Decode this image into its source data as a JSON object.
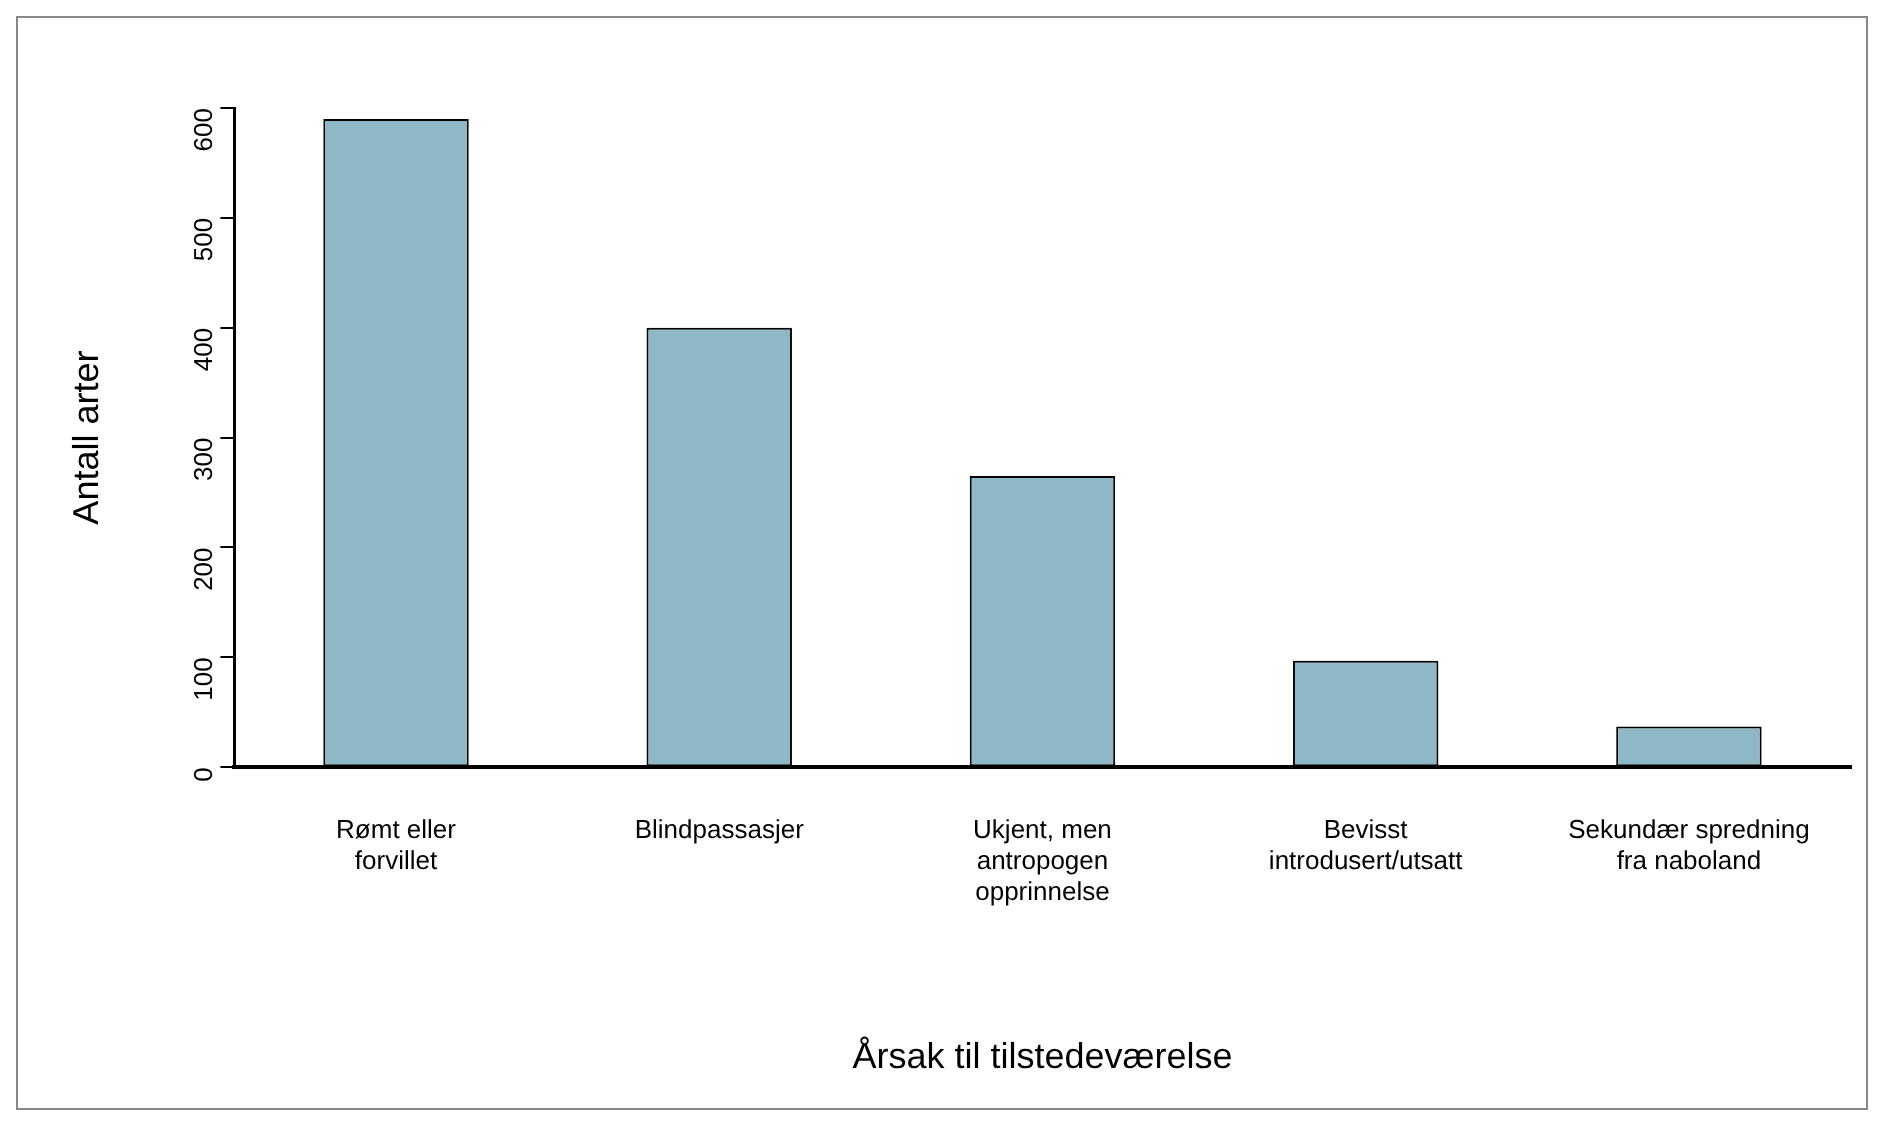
{
  "chart_data": {
    "type": "bar",
    "xlabel": "Årsak til tilstedeværelse",
    "ylabel": "Antall arter",
    "categories": [
      "Rømt eller\nforvillet",
      "Blindpassasjer",
      "Ukjent, men\nantropogen\nopprinnelse",
      "Bevisst\nintrodusert/utsatt",
      "Sekundær spredning\nfra naboland"
    ],
    "values": [
      590,
      400,
      265,
      97,
      37
    ],
    "color": "#8fb8c6",
    "ylim": [
      0,
      600
    ],
    "yticks": [
      0,
      100,
      200,
      300,
      400,
      500,
      600
    ],
    "grid": false,
    "legend": false
  }
}
